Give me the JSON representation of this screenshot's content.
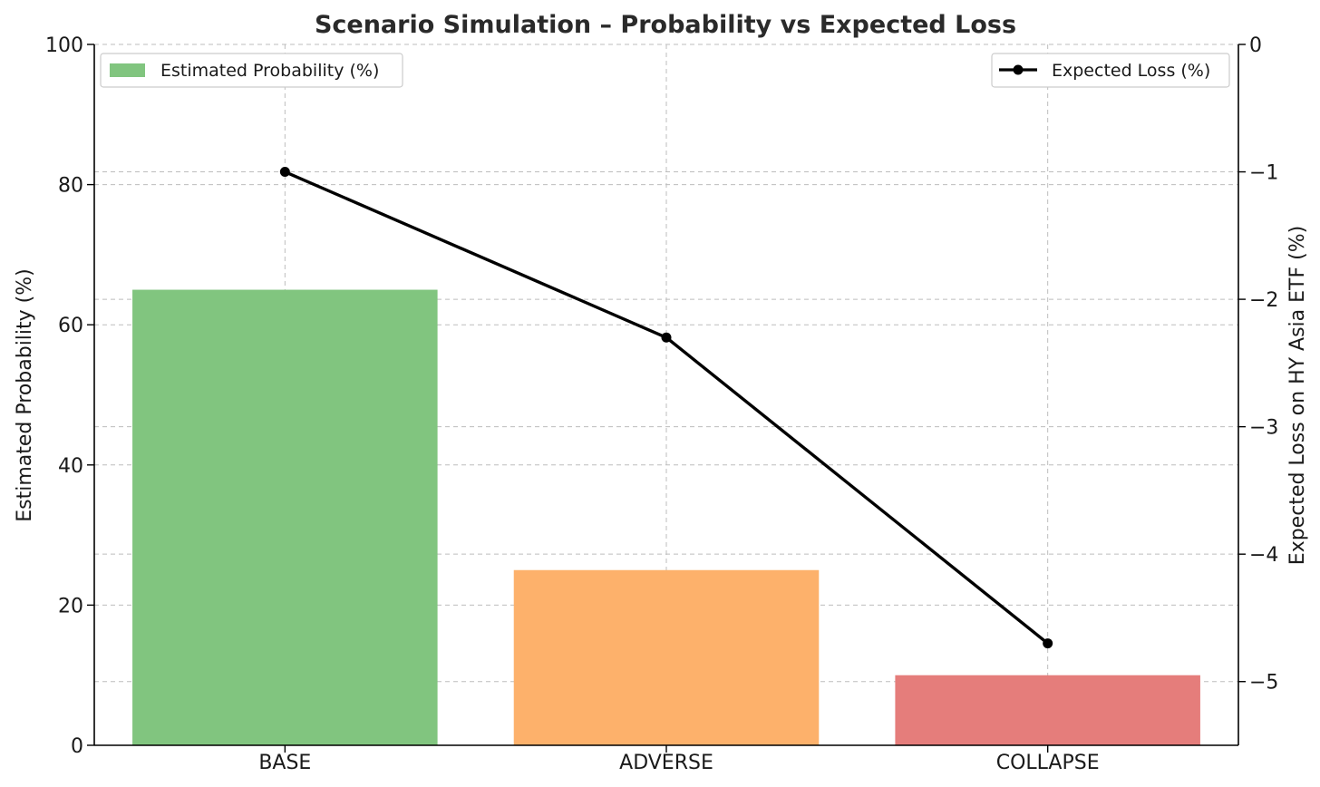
{
  "chart_data": {
    "type": "bar",
    "title": "Scenario Simulation – Probability vs Expected Loss",
    "categories": [
      "BASE",
      "ADVERSE",
      "COLLAPSE"
    ],
    "bar_series": {
      "name": "Estimated Probability (%)",
      "values": [
        65,
        25,
        10
      ],
      "colors": [
        "#81c57f",
        "#fdb16b",
        "#e57d7b"
      ]
    },
    "line_series": {
      "name": "Expected Loss (%)",
      "values": [
        -1.0,
        -2.3,
        -4.7
      ],
      "color": "#000000"
    },
    "ylabel": "Estimated Probability (%)",
    "ylim": [
      0,
      100
    ],
    "yticks": [
      0,
      20,
      40,
      60,
      80,
      100
    ],
    "ylabel_right": "Expected Loss on HY Asia ETF (%)",
    "ylim_right": [
      -5.5,
      0
    ],
    "yticks_right": [
      0,
      -1,
      -2,
      -3,
      -4,
      -5
    ],
    "yticklabels_right": [
      "0",
      "−1",
      "−2",
      "−3",
      "−4",
      "−5"
    ],
    "grid": true,
    "legend_bars": "top-left",
    "legend_line": "top-right"
  }
}
